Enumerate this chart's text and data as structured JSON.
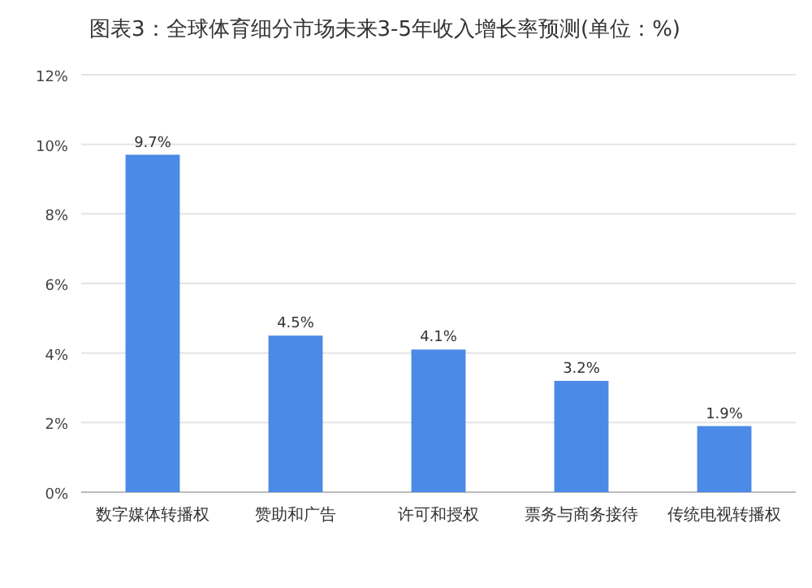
{
  "chart_data": {
    "type": "bar",
    "title": "图表3：全球体育细分市场未来3-5年收入增长率预测(单位：%)",
    "categories": [
      "数字媒体转播权",
      "赞助和广告",
      "许可和授权",
      "票务与商务接待",
      "传统电视转播权"
    ],
    "values": [
      9.7,
      4.5,
      4.1,
      3.2,
      1.9
    ],
    "value_labels": [
      "9.7%",
      "4.5%",
      "4.1%",
      "3.2%",
      "1.9%"
    ],
    "color": "#4b8ae6",
    "ylim": [
      0,
      12
    ],
    "yticks": [
      {
        "value": 0,
        "label": "0%"
      },
      {
        "value": 2,
        "label": "2%"
      },
      {
        "value": 4,
        "label": "4%"
      },
      {
        "value": 6,
        "label": "6%"
      },
      {
        "value": 8,
        "label": "8%"
      },
      {
        "value": 10,
        "label": "10%"
      },
      {
        "value": 12,
        "label": "12%"
      }
    ],
    "grid": "y"
  }
}
